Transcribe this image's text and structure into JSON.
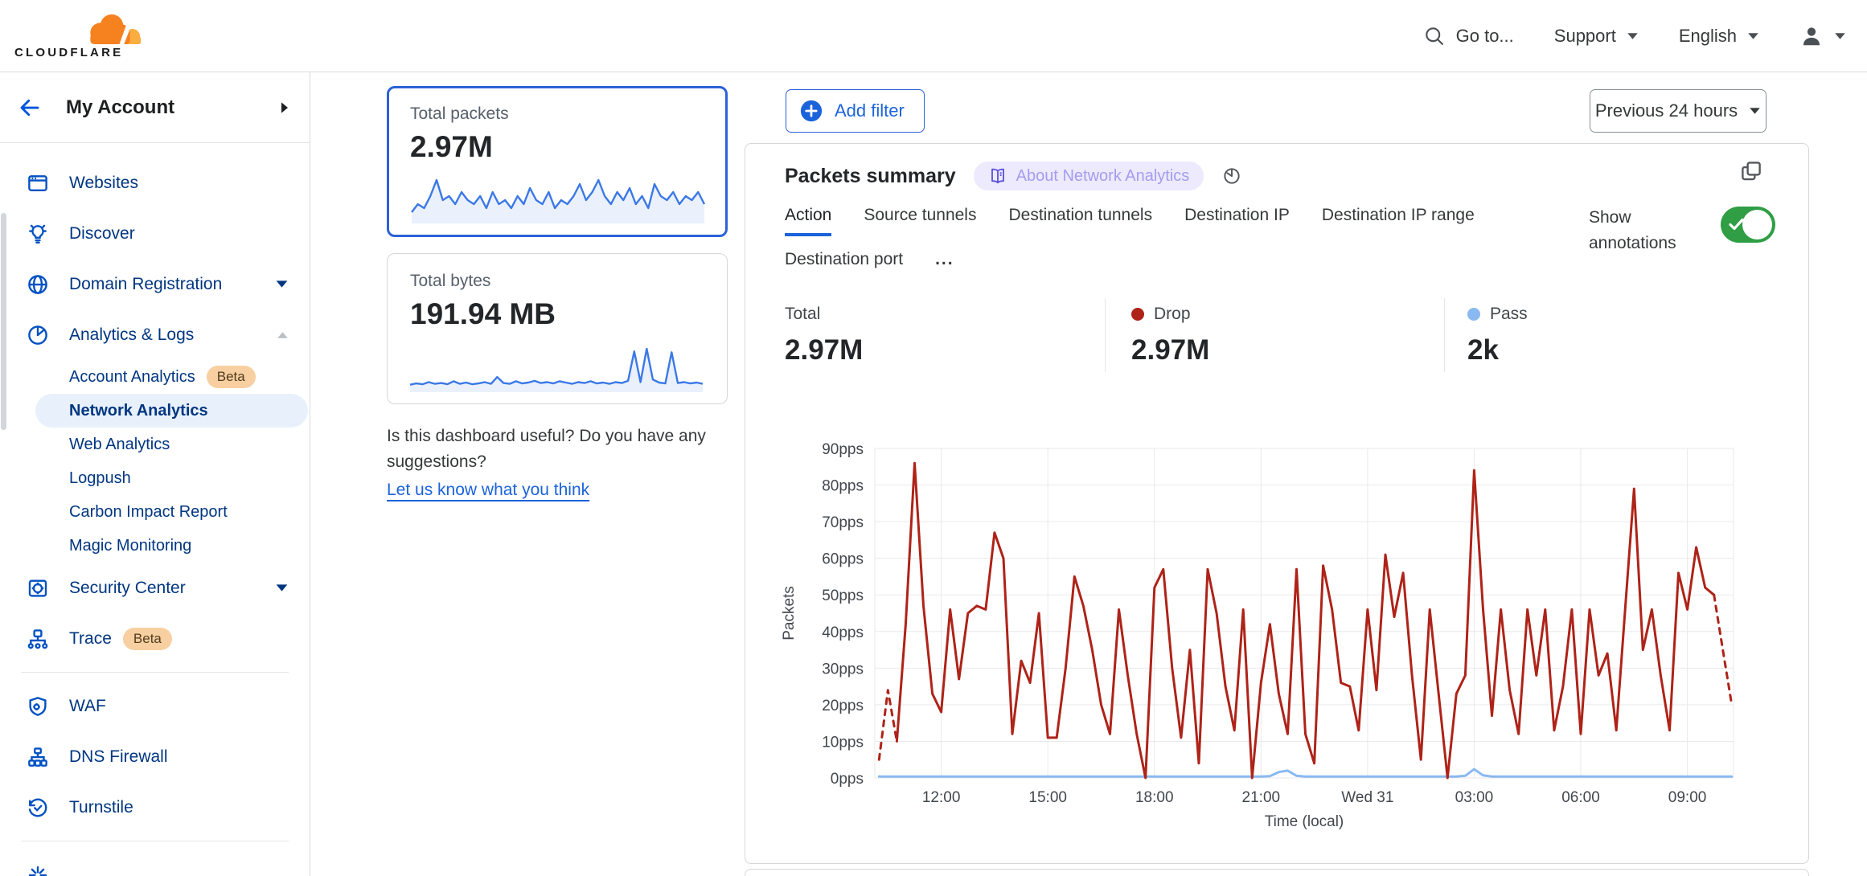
{
  "header": {
    "logo_text": "CLOUDFLARE",
    "search_label": "Go to...",
    "support_label": "Support",
    "language_label": "English"
  },
  "sidebar": {
    "account_label": "My Account",
    "items": [
      {
        "label": "Websites"
      },
      {
        "label": "Discover"
      },
      {
        "label": "Domain Registration"
      },
      {
        "label": "Analytics & Logs"
      }
    ],
    "analytics_children": [
      {
        "label": "Account Analytics",
        "badge": "Beta"
      },
      {
        "label": "Network Analytics",
        "selected": true
      },
      {
        "label": "Web Analytics"
      },
      {
        "label": "Logpush"
      },
      {
        "label": "Carbon Impact Report"
      },
      {
        "label": "Magic Monitoring"
      }
    ],
    "items2": [
      {
        "label": "Security Center"
      },
      {
        "label": "Trace",
        "badge": "Beta"
      }
    ],
    "items3": [
      {
        "label": "WAF"
      },
      {
        "label": "DNS Firewall"
      },
      {
        "label": "Turnstile"
      }
    ]
  },
  "summary_cards": [
    {
      "title": "Total packets",
      "value": "2.97M",
      "selected": true,
      "spark": [
        2,
        4,
        3,
        6,
        10,
        5,
        6,
        4,
        7,
        5,
        4,
        6,
        3,
        7,
        4,
        5,
        3,
        6,
        4,
        8,
        5,
        4,
        7,
        3,
        5,
        4,
        6,
        9,
        5,
        7,
        10,
        6,
        4,
        7,
        5,
        8,
        4,
        6,
        3,
        9,
        6,
        5,
        7,
        4,
        6,
        5,
        7,
        4
      ]
    },
    {
      "title": "Total bytes",
      "value": "191.94 MB",
      "selected": false,
      "spark": [
        1.0,
        1.3,
        1.1,
        1.6,
        1.2,
        1.4,
        1.1,
        1.8,
        1.2,
        1.5,
        1.1,
        1.3,
        1.6,
        1.2,
        2.8,
        1.4,
        1.2,
        1.8,
        1.3,
        1.5,
        1.9,
        1.4,
        1.6,
        1.3,
        1.8,
        1.5,
        1.2,
        1.6,
        1.4,
        1.8,
        1.3,
        1.5,
        1.2,
        1.6,
        1.4,
        1.9,
        8.8,
        1.6,
        9.4,
        2.2,
        1.5,
        1.3,
        8.6,
        1.4,
        1.6,
        1.3,
        1.5,
        1.2
      ]
    }
  ],
  "feedback": {
    "question": "Is this dashboard useful? Do you have any suggestions?",
    "link": "Let us know what you think"
  },
  "toolbar": {
    "add_filter": "Add filter",
    "time_range": "Previous 24 hours"
  },
  "panel": {
    "title": "Packets summary",
    "badge": "About Network Analytics",
    "show_annotations": "Show annotations",
    "tabs": [
      "Action",
      "Source tunnels",
      "Destination tunnels",
      "Destination IP",
      "Destination IP range",
      "Destination port",
      "..."
    ],
    "active_tab": "Action",
    "stats": [
      {
        "label": "Total",
        "value": "2.97M"
      },
      {
        "label": "Drop",
        "value": "2.97M",
        "dot": "#ae2318"
      },
      {
        "label": "Pass",
        "value": "2k",
        "dot": "#8ab9f1"
      }
    ]
  },
  "chart_data": {
    "type": "line",
    "title": "Packets summary",
    "xlabel": "Time (local)",
    "ylabel": "Packets",
    "grid": true,
    "legend_position": "stats-row-above-chart",
    "ylim": [
      0,
      90
    ],
    "y_ticks": [
      "0pps",
      "10pps",
      "20pps",
      "30pps",
      "40pps",
      "50pps",
      "60pps",
      "70pps",
      "80pps",
      "90pps"
    ],
    "x_ticks": [
      "12:00",
      "15:00",
      "18:00",
      "21:00",
      "Wed 31",
      "03:00",
      "06:00",
      "09:00"
    ],
    "tick_hours": [
      12,
      15,
      18,
      21,
      24,
      27,
      30,
      33
    ],
    "x_range_hours": [
      10.13,
      34.3
    ],
    "points_start_hour": 10.25,
    "points_interval_hours": 0.25,
    "series": [
      {
        "name": "Drop",
        "color": "#ae2318",
        "segments": [
          {
            "from": 0,
            "to": 2,
            "dashed": true
          },
          {
            "from": 2,
            "to": 94,
            "dashed": false
          },
          {
            "from": 94,
            "to": 96,
            "dashed": true
          }
        ],
        "values": [
          5,
          24,
          10,
          42,
          86,
          47,
          23,
          18,
          46,
          27,
          45,
          47,
          46,
          67,
          60,
          12,
          32,
          26,
          45,
          11,
          11,
          30,
          55,
          47,
          35,
          20,
          12,
          46,
          28,
          12,
          0,
          52,
          57,
          30,
          11,
          35,
          4,
          57,
          45,
          25,
          13,
          46,
          0,
          26,
          42,
          23,
          12,
          57,
          12,
          4,
          58,
          46,
          26,
          25,
          13,
          46,
          24,
          61,
          44,
          56,
          28,
          5,
          46,
          23,
          0,
          23,
          28,
          84,
          46,
          17,
          46,
          24,
          12,
          46,
          28,
          46,
          13,
          25,
          46,
          12,
          46,
          28,
          34,
          13,
          46,
          79,
          35,
          46,
          28,
          13,
          56,
          46,
          63,
          52,
          50,
          35,
          20
        ]
      },
      {
        "name": "Pass",
        "color": "#8ab9f1",
        "segments": [
          {
            "from": 0,
            "to": 96,
            "dashed": false
          }
        ],
        "values": [
          0.4,
          0.4,
          0.4,
          0.4,
          0.4,
          0.4,
          0.4,
          0.4,
          0.4,
          0.4,
          0.4,
          0.4,
          0.4,
          0.4,
          0.4,
          0.4,
          0.4,
          0.4,
          0.4,
          0.4,
          0.4,
          0.4,
          0.4,
          0.4,
          0.4,
          0.4,
          0.4,
          0.4,
          0.4,
          0.4,
          0.4,
          0.4,
          0.4,
          0.4,
          0.4,
          0.4,
          0.4,
          0.4,
          0.4,
          0.4,
          0.4,
          0.4,
          0.4,
          0.4,
          0.5,
          1.6,
          2.0,
          0.6,
          0.4,
          0.4,
          0.4,
          0.4,
          0.4,
          0.4,
          0.4,
          0.4,
          0.4,
          0.4,
          0.4,
          0.4,
          0.4,
          0.4,
          0.4,
          0.4,
          0.4,
          0.4,
          0.6,
          2.4,
          0.7,
          0.4,
          0.4,
          0.4,
          0.4,
          0.4,
          0.4,
          0.4,
          0.4,
          0.4,
          0.4,
          0.4,
          0.4,
          0.4,
          0.4,
          0.4,
          0.4,
          0.4,
          0.4,
          0.4,
          0.4,
          0.4,
          0.4,
          0.4,
          0.4,
          0.4,
          0.4,
          0.4,
          0.4
        ]
      }
    ]
  },
  "colors": {
    "nav_icon": "#0051c3",
    "nav_text": "#003681",
    "link_blue": "#1b63da",
    "selected_card_border": "#2c62d9",
    "drop": "#ae2318",
    "pass": "#8ab9f1",
    "sparkline": "#3b78e7",
    "toggle_green": "#2f9e44",
    "badge_bg": "#eceafc",
    "badge_text": "#a49dee",
    "badge_icon": "#5a4fd7",
    "beta_bg": "#f8cfa0",
    "brand_orange": "#f6821f",
    "brand_orange_light": "#fbad41"
  }
}
